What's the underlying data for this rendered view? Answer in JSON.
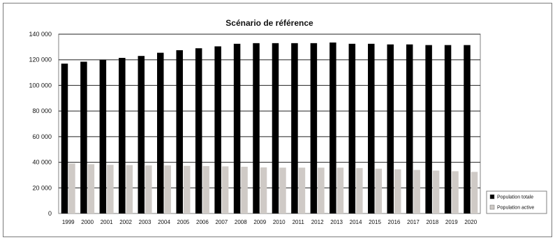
{
  "chart_data": {
    "type": "bar",
    "title": "Scénario de référence",
    "xlabel": "",
    "ylabel": "",
    "ylim": [
      0,
      140000
    ],
    "yticks": [
      0,
      20000,
      40000,
      60000,
      80000,
      100000,
      120000,
      140000
    ],
    "ytick_labels": [
      "0",
      "20 000",
      "40 000",
      "60 000",
      "80 000",
      "100 000",
      "120 000",
      "140 000"
    ],
    "grid": true,
    "legend_position": "right",
    "categories": [
      "1999",
      "2000",
      "2001",
      "2002",
      "2003",
      "2004",
      "2005",
      "2006",
      "2007",
      "2008",
      "2009",
      "2010",
      "2011",
      "2012",
      "2013",
      "2014",
      "2015",
      "2016",
      "2017",
      "2018",
      "2019",
      "2020"
    ],
    "series": [
      {
        "name": "Population totale",
        "color": "#000000",
        "values": [
          117000,
          118500,
          120000,
          121500,
          123000,
          125500,
          127500,
          129000,
          130500,
          132500,
          133000,
          133000,
          133000,
          133000,
          133500,
          132500,
          132500,
          132000,
          132000,
          131500,
          131500,
          131500
        ]
      },
      {
        "name": "Population active",
        "color": "#cfcac6",
        "values": [
          39000,
          38500,
          38000,
          37800,
          37500,
          37500,
          37200,
          37000,
          36800,
          36500,
          36000,
          35800,
          35800,
          35800,
          35800,
          35500,
          35000,
          34500,
          34000,
          33500,
          33000,
          32500
        ]
      }
    ]
  }
}
